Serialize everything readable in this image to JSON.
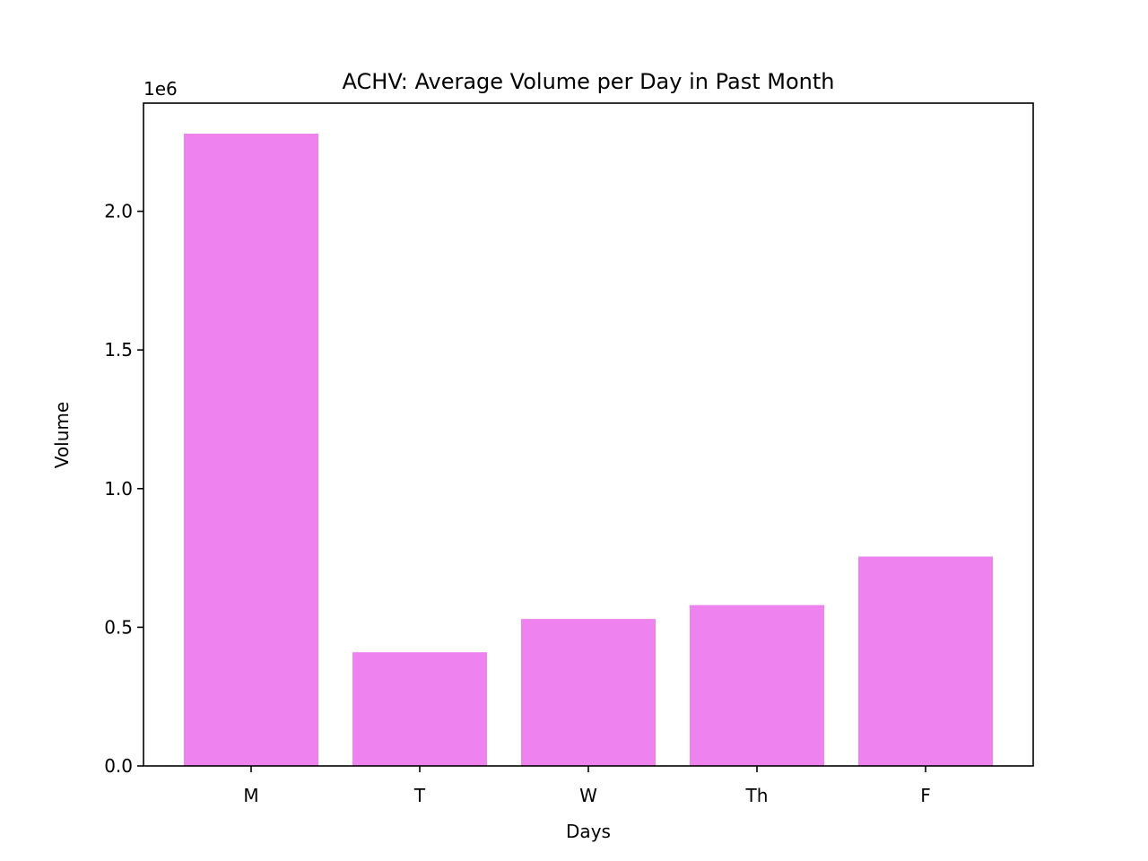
{
  "chart_data": {
    "type": "bar",
    "title": "ACHV: Average Volume per Day in Past Month",
    "xlabel": "Days",
    "ylabel": "Volume",
    "categories": [
      "M",
      "T",
      "W",
      "Th",
      "F"
    ],
    "values": [
      2280000,
      410000,
      530000,
      580000,
      755000
    ],
    "ylim": [
      0,
      2390000
    ],
    "yticks": [
      0,
      500000,
      1000000,
      1500000,
      2000000
    ],
    "ytick_labels": [
      "0.0",
      "0.5",
      "1.0",
      "1.5",
      "2.0"
    ],
    "y_offset_label": "1e6",
    "bar_color": "#ee82ee",
    "grid": false,
    "legend": "none"
  }
}
